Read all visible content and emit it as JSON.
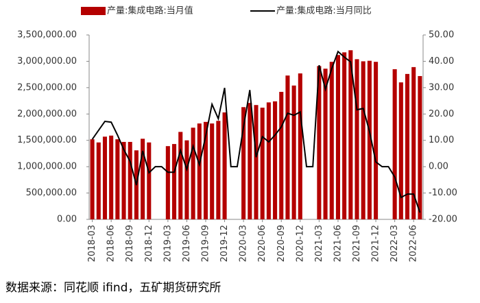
{
  "chart_data": {
    "type": "bar_line",
    "source": "数据来源：同花顺 ifind，五矿期货研究所",
    "categories": [
      "2018-03",
      null,
      null,
      "2018-06",
      null,
      null,
      "2018-09",
      null,
      null,
      "2018-12",
      null,
      null,
      "2019-03",
      null,
      null,
      "2019-06",
      null,
      null,
      "2019-09",
      null,
      null,
      "2019-12",
      null,
      null,
      "2020-03",
      null,
      null,
      "2020-06",
      null,
      null,
      "2020-09",
      null,
      null,
      "2020-12",
      null,
      null,
      "2021-03",
      null,
      null,
      "2021-06",
      null,
      null,
      "2021-09",
      null,
      null,
      "2021-12",
      null,
      null,
      "2022-03",
      null,
      null,
      "2022-06",
      null
    ],
    "series": [
      {
        "name": "产量:集成电路:当月值",
        "type": "bar",
        "color": "#b40000",
        "axis": "y",
        "values": [
          1520000,
          1460000,
          1570000,
          1590000,
          1520000,
          1470000,
          1470000,
          1310000,
          1530000,
          1460000,
          null,
          null,
          1390000,
          1430000,
          1660000,
          1500000,
          1740000,
          1820000,
          1850000,
          1820000,
          1870000,
          2030000,
          null,
          null,
          2130000,
          2210000,
          2170000,
          2120000,
          2220000,
          2240000,
          2420000,
          2730000,
          2540000,
          2770000,
          null,
          null,
          2910000,
          2860000,
          2990000,
          3120000,
          3170000,
          3210000,
          3040000,
          3000000,
          3010000,
          2990000,
          null,
          null,
          2850000,
          2600000,
          2760000,
          2890000,
          2720000
        ]
      },
      {
        "name": "产量:集成电路:当月同比",
        "type": "line",
        "color": "#000000",
        "axis": "y2",
        "values": [
          10.4,
          13.8,
          17.2,
          16.9,
          12,
          6.5,
          2,
          -7,
          6,
          -2.3,
          0,
          0,
          -2.1,
          -2.1,
          6.2,
          -1,
          7.8,
          0.8,
          11.7,
          23.7,
          18.2,
          29.9,
          0,
          0,
          15.1,
          29.1,
          3.6,
          11.4,
          9.4,
          12,
          15.1,
          20.3,
          19.5,
          20.8,
          0,
          0,
          38.5,
          29.4,
          37.2,
          43.7,
          41.6,
          39.8,
          21.6,
          22.1,
          13.3,
          1.8,
          0,
          0,
          -3.9,
          -11.7,
          -10.4,
          -10.4,
          -17.4
        ]
      }
    ],
    "ylim": [
      0,
      3500000
    ],
    "yticks": [
      {
        "value": 0,
        "label": "0.00"
      },
      {
        "value": 500000,
        "label": "500,000.00"
      },
      {
        "value": 1000000,
        "label": "1,000,000.00"
      },
      {
        "value": 1500000,
        "label": "1,500,000.00"
      },
      {
        "value": 2000000,
        "label": "2,000,000.00"
      },
      {
        "value": 2500000,
        "label": "2,500,000.00"
      },
      {
        "value": 3000000,
        "label": "3,000,000.00"
      },
      {
        "value": 3500000,
        "label": "3,500,000.00"
      }
    ],
    "y2lim": [
      -20,
      50
    ],
    "y2ticks": [
      {
        "value": -20,
        "label": "-20.00"
      },
      {
        "value": -10,
        "label": "-10.00"
      },
      {
        "value": 0,
        "label": "0.00"
      },
      {
        "value": 10,
        "label": "10.00"
      },
      {
        "value": 20,
        "label": "20.00"
      },
      {
        "value": 30,
        "label": "30.00"
      },
      {
        "value": 40,
        "label": "40.00"
      },
      {
        "value": 50,
        "label": "50.00"
      }
    ],
    "legend": "top"
  }
}
